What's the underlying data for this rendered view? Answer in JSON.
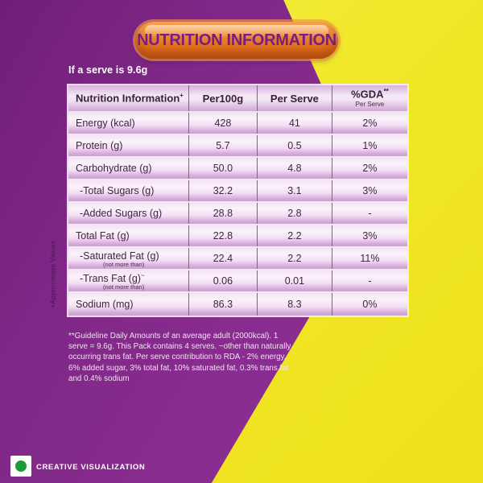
{
  "colors": {
    "background_purple": "#7E2786",
    "background_yellow": "#F1E728",
    "badge_orange": "#E4731F",
    "badge_text_purple": "#761F83",
    "table_row_pink": "#D6A9DB",
    "table_text": "#3F2640",
    "veg_mark_green": "#1E9A38"
  },
  "header": {
    "title": "NUTRITION INFORMATION",
    "serve_note": "If a serve is 9.6g"
  },
  "table": {
    "col1_label": "Nutrition Information",
    "col1_sup": "+",
    "col2_label": "Per100g",
    "col3_label": "Per Serve",
    "col4_label": "%GDA",
    "col4_sup": "**",
    "col4_sublabel": "Per Serve",
    "rows": [
      {
        "label": "Energy (kcal)",
        "per100g": "428",
        "per_serve": "41",
        "gda": "2%"
      },
      {
        "label": "Protein (g)",
        "per100g": "5.7",
        "per_serve": "0.5",
        "gda": "1%"
      },
      {
        "label": "Carbohydrate (g)",
        "per100g": "50.0",
        "per_serve": "4.8",
        "gda": "2%"
      },
      {
        "label": "-Total Sugars (g)",
        "per100g": "32.2",
        "per_serve": "3.1",
        "gda": "3%"
      },
      {
        "label": "-Added Sugars (g)",
        "per100g": "28.8",
        "per_serve": "2.8",
        "gda": "-"
      },
      {
        "label": "Total Fat (g)",
        "per100g": "22.8",
        "per_serve": "2.2",
        "gda": "3%"
      },
      {
        "label": "-Saturated Fat (g)",
        "sublabel": "(not more than)",
        "per100g": "22.4",
        "per_serve": "2.2",
        "gda": "11%"
      },
      {
        "label": "-Trans Fat (g)",
        "label_sup": "~",
        "sublabel": "(not more than)",
        "per100g": "0.06",
        "per_serve": "0.01",
        "gda": "-"
      },
      {
        "label": "Sodium (mg)",
        "per100g": "86.3",
        "per_serve": "8.3",
        "gda": "0%"
      }
    ]
  },
  "side_note": "+Approximate Values",
  "footnote": "**Guideline Daily Amounts of an average adult (2000kcal). 1 serve = 9.6g. This Pack contains 4 serves. ~other than naturally occurring trans fat. Per serve contribution to RDA - 2% energy, 6% added sugar, 3% total fat, 10% saturated fat, 0.3% trans fat and 0.4% sodium",
  "footer": {
    "label": "CREATIVE VISUALIZATION",
    "veg_mark": "vegetarian-green-dot-symbol"
  }
}
